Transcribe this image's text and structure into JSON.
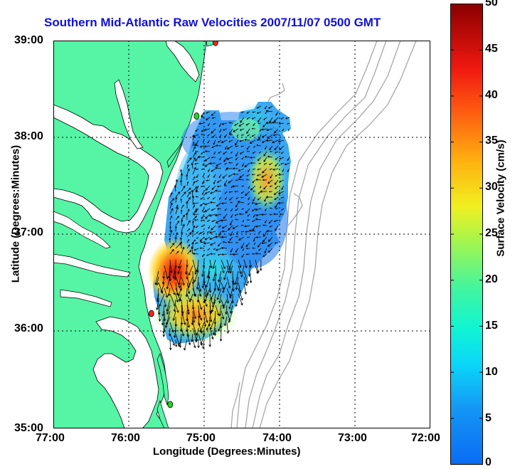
{
  "title": "Southern Mid-Atlantic Raw Velocities 2007/11/07 0500 GMT",
  "xlabel": "Longitude (Degrees:Minutes)",
  "ylabel": "Latitude (Degrees:Minutes)",
  "x_ticks": [
    "77:00",
    "76:00",
    "75:00",
    "74:00",
    "73:00",
    "72:00"
  ],
  "y_ticks": [
    "39:00",
    "38:00",
    "37:00",
    "36:00",
    "35:00"
  ],
  "colorbar": {
    "label": "Surface Velocity (cm/s)",
    "ticks": [
      "50",
      "45",
      "40",
      "35",
      "30",
      "25",
      "20",
      "15",
      "10",
      "5",
      "0"
    ],
    "range": [
      0,
      50
    ]
  },
  "colors": {
    "land": "#55f5a5",
    "title": "#1010d8",
    "bathymetry": "#a0a0a0"
  },
  "stations": [
    {
      "lon": -74.85,
      "lat": 38.98,
      "color": "#ff2020"
    },
    {
      "lon": -75.1,
      "lat": 38.22,
      "color": "#20d820"
    },
    {
      "lon": -75.7,
      "lat": 36.18,
      "color": "#ff2020"
    },
    {
      "lon": -75.45,
      "lat": 35.24,
      "color": "#20d820"
    }
  ]
}
